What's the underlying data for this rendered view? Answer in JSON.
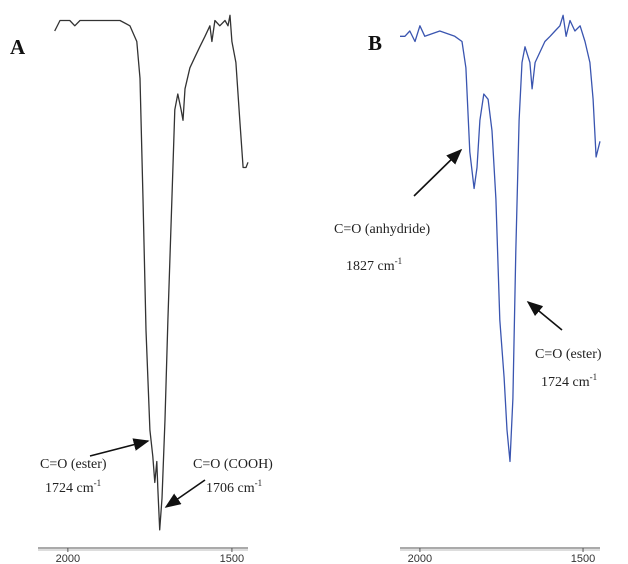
{
  "chart_data": [
    {
      "type": "line",
      "title": "A",
      "x": [
        2040,
        2024,
        1994,
        1979,
        1963,
        1902,
        1841,
        1811,
        1790,
        1780,
        1771,
        1762,
        1750,
        1741,
        1735,
        1729,
        1726,
        1720,
        1713,
        1704,
        1695,
        1683,
        1674,
        1665,
        1655,
        1649,
        1643,
        1628,
        1613,
        1598,
        1582,
        1567,
        1561,
        1552,
        1537,
        1521,
        1512,
        1506,
        1500,
        1488,
        1476,
        1466,
        1457,
        1451
      ],
      "series": [
        {
          "color": "#333333",
          "values": [
            96,
            98,
            98,
            97,
            98,
            98,
            98,
            97,
            94,
            87,
            64,
            39,
            20,
            15,
            10,
            14,
            9,
            1,
            7,
            22,
            41,
            64,
            81,
            84,
            81,
            79,
            85,
            89,
            91,
            93,
            95,
            97,
            94,
            98,
            97,
            98,
            97,
            99,
            94,
            90,
            79,
            70,
            70,
            71
          ]
        }
      ],
      "xlim": [
        2091,
        1451
      ],
      "xticks": [
        2000,
        1500
      ],
      "ylim": [
        0,
        100
      ],
      "annotations": [
        {
          "text": "C=O (ester)"
        },
        {
          "text": "1724 cm",
          "sup": "-1"
        },
        {
          "text": "C=O (COOH)"
        },
        {
          "text": "1706 cm",
          "sup": "-1"
        }
      ]
    },
    {
      "type": "line",
      "title": "B",
      "x": [
        2061,
        2046,
        2031,
        2015,
        2000,
        1985,
        1939,
        1893,
        1871,
        1859,
        1847,
        1834,
        1825,
        1816,
        1804,
        1791,
        1779,
        1767,
        1755,
        1742,
        1733,
        1724,
        1715,
        1706,
        1696,
        1687,
        1678,
        1663,
        1656,
        1647,
        1632,
        1617,
        1601,
        1586,
        1571,
        1561,
        1552,
        1540,
        1525,
        1509,
        1494,
        1479,
        1469,
        1460,
        1448
      ],
      "series": [
        {
          "color": "#3a55b0",
          "values": [
            95,
            95,
            96,
            94,
            97,
            95,
            96,
            95,
            94,
            89,
            73,
            66,
            70,
            79,
            84,
            83,
            77,
            64,
            41,
            30,
            20,
            14,
            26,
            54,
            79,
            90,
            93,
            90,
            85,
            90,
            92,
            94,
            95,
            96,
            97,
            99,
            95,
            98,
            96,
            97,
            94,
            90,
            83,
            72,
            75
          ]
        }
      ],
      "xlim": [
        2061,
        1448
      ],
      "xticks": [
        2000,
        1500
      ],
      "ylim": [
        0,
        100
      ],
      "annotations": [
        {
          "text": "C=O (anhydride)"
        },
        {
          "text": "1827 cm",
          "sup": "-1"
        },
        {
          "text": "C=O (ester)"
        },
        {
          "text": "1724 cm",
          "sup": "-1"
        }
      ]
    }
  ]
}
